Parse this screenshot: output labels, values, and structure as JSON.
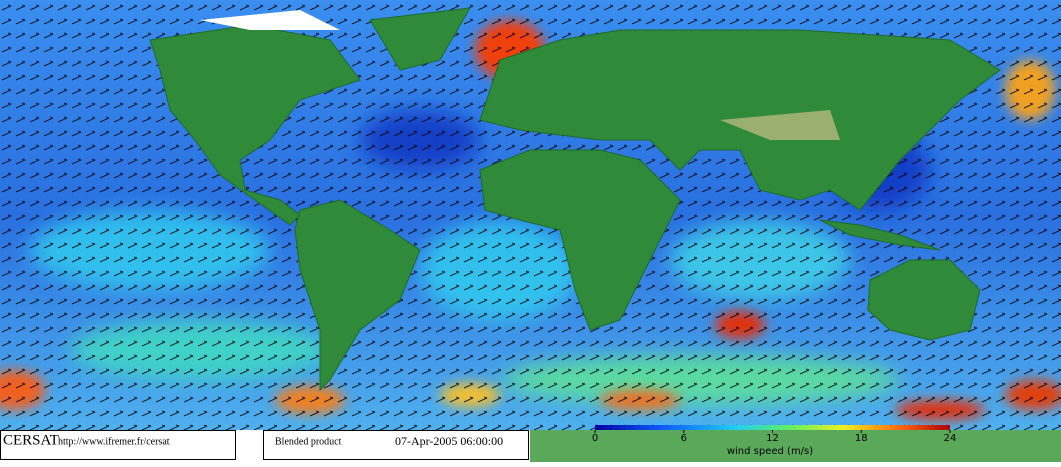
{
  "footer": {
    "logo": "CERSAT",
    "url": "http://www.ifremer.fr/cersat",
    "product": "Blended product",
    "date": "07-Apr-2005 06:00:00"
  },
  "colorbar": {
    "label": "wind speed (m/s)",
    "lim": [
      0,
      24
    ],
    "ticks": [
      0,
      6,
      12,
      18,
      24
    ]
  }
}
